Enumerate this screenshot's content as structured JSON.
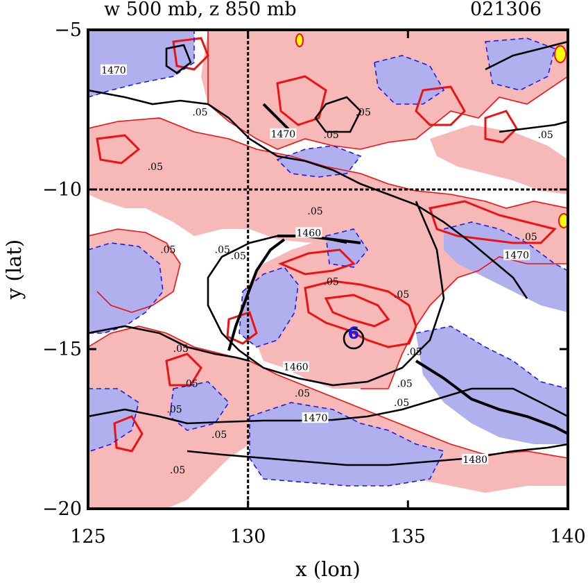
{
  "chart_data": {
    "type": "contour",
    "title_left": "w 500 mb, z 850 mb",
    "title_right": "021306",
    "xlabel": "x (lon)",
    "ylabel": "y (lat)",
    "xlim": [
      125,
      140
    ],
    "ylim": [
      -20,
      -5
    ],
    "x_ticks": [
      125,
      130,
      135,
      140
    ],
    "y_ticks": [
      -5,
      -10,
      -15,
      -20
    ],
    "x_tick_labels": [
      "125",
      "130",
      "135",
      "140"
    ],
    "y_tick_labels": [
      "−5",
      "−10",
      "−15",
      "−20"
    ],
    "reference_lines": {
      "lon": 130,
      "lat": -10
    },
    "colors": {
      "positive_fill": "#f7b8b8",
      "negative_fill": "#b0b0ee",
      "positive_contour": "#ee1111",
      "negative_contour": "#1a1aee",
      "height_contour": "#000000",
      "extreme": "#ffff00"
    },
    "height_contours": [
      {
        "label": "1470",
        "lon": 125.8,
        "lat": -6.3
      },
      {
        "label": "1470",
        "lon": 131.1,
        "lat": -8.3
      },
      {
        "label": "1460",
        "lon": 131.9,
        "lat": -11.4
      },
      {
        "label": "1460",
        "lon": 131.5,
        "lat": -15.6
      },
      {
        "label": "1470",
        "lon": 132.1,
        "lat": -17.2
      },
      {
        "label": "1470",
        "lon": 138.4,
        "lat": -12.1
      },
      {
        "label": "1480",
        "lon": 137.1,
        "lat": -18.5
      }
    ],
    "w_contour_labels": [
      {
        "label": ".05",
        "lon": 127.1,
        "lat": -9.3
      },
      {
        "label": ".05",
        "lon": 132.6,
        "lat": -8.3
      },
      {
        "label": ".05",
        "lon": 132.1,
        "lat": -10.7
      },
      {
        "label": ".05",
        "lon": 127.5,
        "lat": -11.9
      },
      {
        "label": ".05",
        "lon": 129.7,
        "lat": -12.1
      },
      {
        "label": ".05",
        "lon": 134.8,
        "lat": -13.3
      },
      {
        "label": ".05",
        "lon": 127.9,
        "lat": -15.0
      },
      {
        "label": ".05",
        "lon": 128.2,
        "lat": -16.1
      },
      {
        "label": ".05",
        "lon": 127.7,
        "lat": -16.9
      },
      {
        "label": ".05",
        "lon": 129.1,
        "lat": -17.7
      },
      {
        "label": ".05",
        "lon": 127.8,
        "lat": -18.8
      },
      {
        "label": ".05",
        "lon": 131.7,
        "lat": -16.4
      },
      {
        "label": ".05",
        "lon": 134.9,
        "lat": -16.1
      },
      {
        "label": ".05",
        "lon": 134.8,
        "lat": -16.7
      },
      {
        "label": ".05",
        "lon": 139.3,
        "lat": -8.3
      },
      {
        "label": ".05",
        "lon": 128.5,
        "lat": -7.6
      },
      {
        "label": ".05",
        "lon": 138.8,
        "lat": -11.5
      },
      {
        "label": ".05",
        "lon": 129.2,
        "lat": -11.9
      },
      {
        "label": ".05",
        "lon": 133.6,
        "lat": -7.6
      },
      {
        "label": ".05",
        "lon": 132.6,
        "lat": -12.9
      },
      {
        "label": ".05",
        "lon": 135.2,
        "lat": -15.1
      }
    ],
    "center_marker": {
      "label": "6",
      "lon": 133.3,
      "lat": -14.5
    }
  }
}
